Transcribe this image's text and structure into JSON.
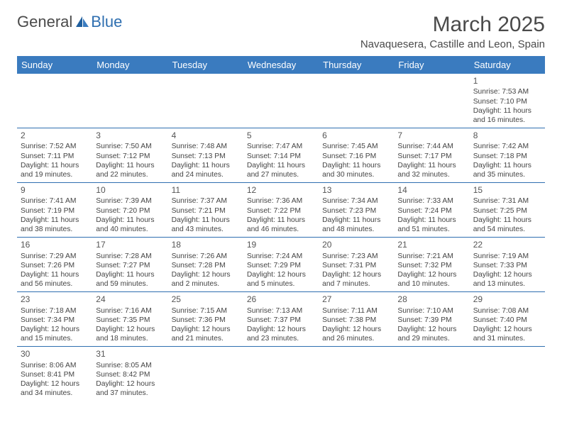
{
  "logo": {
    "text1": "General",
    "text2": "Blue"
  },
  "title": "March 2025",
  "location": "Navaquesera, Castille and Leon, Spain",
  "colors": {
    "header_bg": "#3a7bbf",
    "header_text": "#ffffff",
    "border": "#2f6fb0",
    "body_text": "#444444",
    "title_text": "#4a4a4a"
  },
  "weekdays": [
    "Sunday",
    "Monday",
    "Tuesday",
    "Wednesday",
    "Thursday",
    "Friday",
    "Saturday"
  ],
  "weeks": [
    [
      null,
      null,
      null,
      null,
      null,
      null,
      {
        "n": "1",
        "sr": "Sunrise: 7:53 AM",
        "ss": "Sunset: 7:10 PM",
        "dl": "Daylight: 11 hours and 16 minutes."
      }
    ],
    [
      {
        "n": "2",
        "sr": "Sunrise: 7:52 AM",
        "ss": "Sunset: 7:11 PM",
        "dl": "Daylight: 11 hours and 19 minutes."
      },
      {
        "n": "3",
        "sr": "Sunrise: 7:50 AM",
        "ss": "Sunset: 7:12 PM",
        "dl": "Daylight: 11 hours and 22 minutes."
      },
      {
        "n": "4",
        "sr": "Sunrise: 7:48 AM",
        "ss": "Sunset: 7:13 PM",
        "dl": "Daylight: 11 hours and 24 minutes."
      },
      {
        "n": "5",
        "sr": "Sunrise: 7:47 AM",
        "ss": "Sunset: 7:14 PM",
        "dl": "Daylight: 11 hours and 27 minutes."
      },
      {
        "n": "6",
        "sr": "Sunrise: 7:45 AM",
        "ss": "Sunset: 7:16 PM",
        "dl": "Daylight: 11 hours and 30 minutes."
      },
      {
        "n": "7",
        "sr": "Sunrise: 7:44 AM",
        "ss": "Sunset: 7:17 PM",
        "dl": "Daylight: 11 hours and 32 minutes."
      },
      {
        "n": "8",
        "sr": "Sunrise: 7:42 AM",
        "ss": "Sunset: 7:18 PM",
        "dl": "Daylight: 11 hours and 35 minutes."
      }
    ],
    [
      {
        "n": "9",
        "sr": "Sunrise: 7:41 AM",
        "ss": "Sunset: 7:19 PM",
        "dl": "Daylight: 11 hours and 38 minutes."
      },
      {
        "n": "10",
        "sr": "Sunrise: 7:39 AM",
        "ss": "Sunset: 7:20 PM",
        "dl": "Daylight: 11 hours and 40 minutes."
      },
      {
        "n": "11",
        "sr": "Sunrise: 7:37 AM",
        "ss": "Sunset: 7:21 PM",
        "dl": "Daylight: 11 hours and 43 minutes."
      },
      {
        "n": "12",
        "sr": "Sunrise: 7:36 AM",
        "ss": "Sunset: 7:22 PM",
        "dl": "Daylight: 11 hours and 46 minutes."
      },
      {
        "n": "13",
        "sr": "Sunrise: 7:34 AM",
        "ss": "Sunset: 7:23 PM",
        "dl": "Daylight: 11 hours and 48 minutes."
      },
      {
        "n": "14",
        "sr": "Sunrise: 7:33 AM",
        "ss": "Sunset: 7:24 PM",
        "dl": "Daylight: 11 hours and 51 minutes."
      },
      {
        "n": "15",
        "sr": "Sunrise: 7:31 AM",
        "ss": "Sunset: 7:25 PM",
        "dl": "Daylight: 11 hours and 54 minutes."
      }
    ],
    [
      {
        "n": "16",
        "sr": "Sunrise: 7:29 AM",
        "ss": "Sunset: 7:26 PM",
        "dl": "Daylight: 11 hours and 56 minutes."
      },
      {
        "n": "17",
        "sr": "Sunrise: 7:28 AM",
        "ss": "Sunset: 7:27 PM",
        "dl": "Daylight: 11 hours and 59 minutes."
      },
      {
        "n": "18",
        "sr": "Sunrise: 7:26 AM",
        "ss": "Sunset: 7:28 PM",
        "dl": "Daylight: 12 hours and 2 minutes."
      },
      {
        "n": "19",
        "sr": "Sunrise: 7:24 AM",
        "ss": "Sunset: 7:29 PM",
        "dl": "Daylight: 12 hours and 5 minutes."
      },
      {
        "n": "20",
        "sr": "Sunrise: 7:23 AM",
        "ss": "Sunset: 7:31 PM",
        "dl": "Daylight: 12 hours and 7 minutes."
      },
      {
        "n": "21",
        "sr": "Sunrise: 7:21 AM",
        "ss": "Sunset: 7:32 PM",
        "dl": "Daylight: 12 hours and 10 minutes."
      },
      {
        "n": "22",
        "sr": "Sunrise: 7:19 AM",
        "ss": "Sunset: 7:33 PM",
        "dl": "Daylight: 12 hours and 13 minutes."
      }
    ],
    [
      {
        "n": "23",
        "sr": "Sunrise: 7:18 AM",
        "ss": "Sunset: 7:34 PM",
        "dl": "Daylight: 12 hours and 15 minutes."
      },
      {
        "n": "24",
        "sr": "Sunrise: 7:16 AM",
        "ss": "Sunset: 7:35 PM",
        "dl": "Daylight: 12 hours and 18 minutes."
      },
      {
        "n": "25",
        "sr": "Sunrise: 7:15 AM",
        "ss": "Sunset: 7:36 PM",
        "dl": "Daylight: 12 hours and 21 minutes."
      },
      {
        "n": "26",
        "sr": "Sunrise: 7:13 AM",
        "ss": "Sunset: 7:37 PM",
        "dl": "Daylight: 12 hours and 23 minutes."
      },
      {
        "n": "27",
        "sr": "Sunrise: 7:11 AM",
        "ss": "Sunset: 7:38 PM",
        "dl": "Daylight: 12 hours and 26 minutes."
      },
      {
        "n": "28",
        "sr": "Sunrise: 7:10 AM",
        "ss": "Sunset: 7:39 PM",
        "dl": "Daylight: 12 hours and 29 minutes."
      },
      {
        "n": "29",
        "sr": "Sunrise: 7:08 AM",
        "ss": "Sunset: 7:40 PM",
        "dl": "Daylight: 12 hours and 31 minutes."
      }
    ],
    [
      {
        "n": "30",
        "sr": "Sunrise: 8:06 AM",
        "ss": "Sunset: 8:41 PM",
        "dl": "Daylight: 12 hours and 34 minutes."
      },
      {
        "n": "31",
        "sr": "Sunrise: 8:05 AM",
        "ss": "Sunset: 8:42 PM",
        "dl": "Daylight: 12 hours and 37 minutes."
      },
      null,
      null,
      null,
      null,
      null
    ]
  ]
}
